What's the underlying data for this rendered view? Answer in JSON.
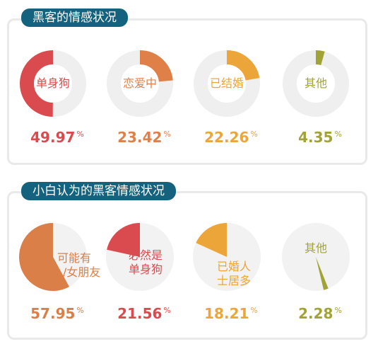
{
  "sections": [
    {
      "title": "黑客的情感状况",
      "items": [
        {
          "label_lines": [
            "单身狗"
          ],
          "value": 49.97,
          "display": "49.97",
          "color": "#d94b4e"
        },
        {
          "label_lines": [
            "恋爱中"
          ],
          "value": 23.42,
          "display": "23.42",
          "color": "#e08049"
        },
        {
          "label_lines": [
            "已结婚"
          ],
          "value": 22.26,
          "display": "22.26",
          "color": "#eca538"
        },
        {
          "label_lines": [
            "其他"
          ],
          "value": 4.35,
          "display": "4.35",
          "color": "#a2a337"
        }
      ]
    },
    {
      "title": "小白认为的黑客情感状况",
      "items": [
        {
          "label_lines": [
            "可能有",
            "男 /女朋友"
          ],
          "value": 57.95,
          "display": "57.95",
          "color": "#d97f47"
        },
        {
          "label_lines": [
            "必然是",
            "单身狗"
          ],
          "value": 21.56,
          "display": "21.56",
          "color": "#d94b4e"
        },
        {
          "label_lines": [
            "已婚人",
            "士居多"
          ],
          "value": 18.21,
          "display": "18.21",
          "color": "#eca538"
        },
        {
          "label_lines": [
            "其他"
          ],
          "value": 2.28,
          "display": "2.28",
          "color": "#a2a337"
        }
      ]
    }
  ],
  "unit": "%",
  "chart_data": [
    {
      "type": "pie",
      "title": "黑客的情感状况",
      "categories": [
        "单身狗",
        "恋爱中",
        "已结婚",
        "其他"
      ],
      "values": [
        49.97,
        23.42,
        22.26,
        4.35
      ],
      "unit": "%"
    },
    {
      "type": "pie",
      "title": "小白认为的黑客情感状况",
      "categories": [
        "可能有男 /女朋友",
        "必然是单身狗",
        "已婚人士居多",
        "其他"
      ],
      "values": [
        57.95,
        21.56,
        18.21,
        2.28
      ],
      "unit": "%"
    }
  ]
}
